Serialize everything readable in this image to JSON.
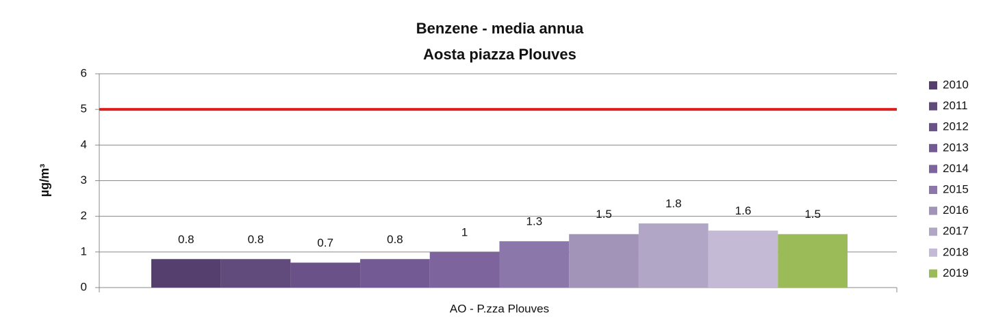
{
  "chart_data": {
    "type": "bar",
    "title": "Benzene - media annua",
    "subtitle": "Aosta piazza Plouves",
    "y_label": "µg/m³",
    "categories": [
      "AO - P.zza Plouves"
    ],
    "series": [
      {
        "name": "2010",
        "color": "#553f6e",
        "values": [
          0.8
        ]
      },
      {
        "name": "2011",
        "color": "#614a7c",
        "values": [
          0.8
        ]
      },
      {
        "name": "2012",
        "color": "#6a5288",
        "values": [
          0.7
        ]
      },
      {
        "name": "2013",
        "color": "#735a94",
        "values": [
          0.8
        ]
      },
      {
        "name": "2014",
        "color": "#7d649d",
        "values": [
          1
        ]
      },
      {
        "name": "2015",
        "color": "#8c77ab",
        "values": [
          1.3
        ]
      },
      {
        "name": "2016",
        "color": "#a293b8",
        "values": [
          1.5
        ]
      },
      {
        "name": "2017",
        "color": "#b2a6c6",
        "values": [
          1.8
        ]
      },
      {
        "name": "2018",
        "color": "#c4bad5",
        "values": [
          1.6
        ]
      },
      {
        "name": "2019",
        "color": "#9bbb59",
        "values": [
          1.5
        ]
      }
    ],
    "ylim": [
      0,
      6
    ],
    "yticks": [
      0,
      1,
      2,
      3,
      4,
      5,
      6
    ],
    "grid": true,
    "reference_line": {
      "value": 5,
      "color": "#e31b1b"
    },
    "legend": "right"
  }
}
